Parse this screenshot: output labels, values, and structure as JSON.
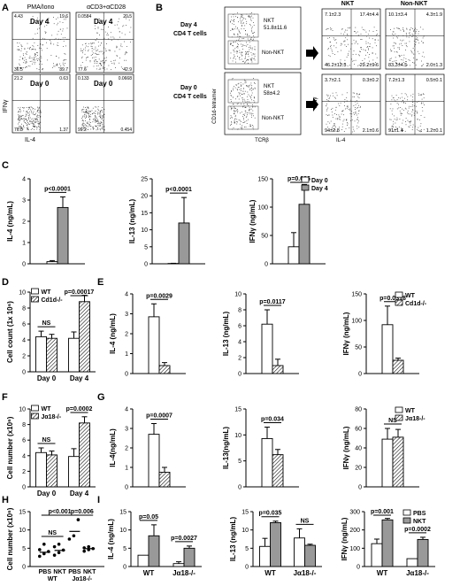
{
  "panelA": {
    "letter": "A",
    "col_titles": [
      "PMA/Iono",
      "αCD3+αCD28"
    ],
    "day4": "Day 4",
    "day0": "Day 0",
    "ylabel": "IFNγ",
    "xlabel": "IL-4",
    "quads": [
      [
        "4.43",
        "19.6",
        "36.5",
        "39.7"
      ],
      [
        "0.0584",
        "20.5",
        "77.6",
        "42.9"
      ],
      [
        "21.2",
        "0.63",
        "76.8",
        "1.37"
      ],
      [
        "0.133",
        "0.0668",
        "99.2",
        "0.454"
      ]
    ]
  },
  "panelB": {
    "letter": "B",
    "row_labels": [
      [
        "Day 4",
        "CD4 T cells"
      ],
      [
        "Day 0",
        "CD4 T cells"
      ]
    ],
    "gates": [
      [
        "NKT",
        "51.8±11.6",
        "Non-NKT"
      ],
      [
        "NKT",
        "58±4.2",
        "Non-NKT"
      ]
    ],
    "ylabel": "CD1d-tetramer",
    "xlabel": "TCRβ",
    "col_titles": [
      "NKT",
      "Non-NKT"
    ],
    "quads": [
      [
        "7.1±2.3",
        "17.4±4.4",
        "46.2±12.3",
        "29.2±9.6"
      ],
      [
        "10.1±3.4",
        "4.3±1.9",
        "83.3±4.5",
        "2.0±1.3"
      ],
      [
        "3.7±2.1",
        "0.3±0.2",
        "94±2.8",
        "2.1±0.6"
      ],
      [
        "7.2±1.3",
        "0.5±0.1",
        "91±1.4",
        "1.2±0.1"
      ]
    ],
    "ylabel2": "IFNγ",
    "xlabel2": "IL-4"
  },
  "chart_data": [
    {
      "panel": "C",
      "type": "bar",
      "ylabel": "IL-4 (ng/mL)",
      "ylim": [
        0,
        4
      ],
      "yticks": [
        0,
        1,
        2,
        3,
        4
      ],
      "series": [
        {
          "name": "Day 0",
          "values": [
            0.1
          ],
          "err": [
            0.05
          ]
        },
        {
          "name": "Day 4",
          "values": [
            2.65
          ],
          "err": [
            0.5
          ]
        }
      ],
      "annotations": [
        "p<0.0001"
      ]
    },
    {
      "panel": "C",
      "type": "bar",
      "ylabel": "IL-13 (ng/mL)",
      "ylim": [
        0,
        25
      ],
      "yticks": [
        0,
        5,
        10,
        15,
        20,
        25
      ],
      "series": [
        {
          "name": "Day 0",
          "values": [
            0.1
          ],
          "err": [
            0.05
          ]
        },
        {
          "name": "Day 4",
          "values": [
            12
          ],
          "err": [
            7.5
          ]
        }
      ],
      "annotations": [
        "p<0.0001"
      ]
    },
    {
      "panel": "C",
      "type": "bar",
      "ylabel": "IFNγ (ng/mL)",
      "ylim": [
        0,
        150
      ],
      "yticks": [
        0,
        50,
        100,
        150
      ],
      "series": [
        {
          "name": "Day 0",
          "values": [
            30
          ],
          "err": [
            25
          ]
        },
        {
          "name": "Day 4",
          "values": [
            105
          ],
          "err": [
            35
          ]
        }
      ],
      "legend": [
        "Day 0",
        "Day 4"
      ],
      "annotations": [
        "p=0.036"
      ]
    },
    {
      "panel": "D",
      "type": "bar",
      "ylabel": "Cell count (1x 10⁶)",
      "ylim": [
        0,
        10
      ],
      "yticks": [
        0,
        2,
        4,
        6,
        8,
        10
      ],
      "categories": [
        "Day 0",
        "Day 4"
      ],
      "series": [
        {
          "name": "WT",
          "values": [
            4.4,
            4.2
          ],
          "err": [
            0.7,
            0.8
          ]
        },
        {
          "name": "Cd1d-/-",
          "values": [
            4.2,
            8.8
          ],
          "err": [
            0.5,
            0.8
          ]
        }
      ],
      "legend": [
        "WT",
        "Cd1d-/-"
      ],
      "annotations": [
        "NS",
        "p=0.00017"
      ]
    },
    {
      "panel": "E",
      "type": "bar",
      "ylabel": "IL-4 (ng/mL)",
      "ylim": [
        0,
        4
      ],
      "yticks": [
        0,
        1,
        2,
        3,
        4
      ],
      "series": [
        {
          "name": "WT",
          "values": [
            2.85
          ],
          "err": [
            0.65
          ]
        },
        {
          "name": "Cd1d-/-",
          "values": [
            0.4
          ],
          "err": [
            0.15
          ]
        }
      ],
      "annotations": [
        "p=0.0029"
      ]
    },
    {
      "panel": "E",
      "type": "bar",
      "ylabel": "IL-13 (ng/mL)",
      "ylim": [
        0,
        10
      ],
      "yticks": [
        0,
        2,
        4,
        6,
        8,
        10
      ],
      "series": [
        {
          "name": "WT",
          "values": [
            6.2
          ],
          "err": [
            1.8
          ]
        },
        {
          "name": "Cd1d-/-",
          "values": [
            1
          ],
          "err": [
            0.8
          ]
        }
      ],
      "annotations": [
        "p=0.0117"
      ]
    },
    {
      "panel": "E",
      "type": "bar",
      "ylabel": "IFNγ (ng/mL)",
      "ylim": [
        0,
        150
      ],
      "yticks": [
        0,
        50,
        100,
        150
      ],
      "series": [
        {
          "name": "WT",
          "values": [
            92
          ],
          "err": [
            35
          ]
        },
        {
          "name": "Cd1d-/-",
          "values": [
            25
          ],
          "err": [
            4
          ]
        }
      ],
      "legend": [
        "WT",
        "Cd1d-/-"
      ],
      "annotations": [
        "p=0.0318"
      ]
    },
    {
      "panel": "F",
      "type": "bar",
      "ylabel": "Cell number (x10⁶)",
      "ylim": [
        0,
        10
      ],
      "yticks": [
        0,
        2,
        4,
        6,
        8,
        10
      ],
      "categories": [
        "Day 0",
        "Day 4"
      ],
      "series": [
        {
          "name": "WT",
          "values": [
            4.4,
            3.9
          ],
          "err": [
            0.6,
            1.0
          ]
        },
        {
          "name": "Jα18-/-",
          "values": [
            4.1,
            8.2
          ],
          "err": [
            0.5,
            0.8
          ]
        }
      ],
      "legend": [
        "WT",
        "Jα18-/-"
      ],
      "annotations": [
        "NS",
        "p=0.0002"
      ]
    },
    {
      "panel": "G",
      "type": "bar",
      "ylabel": "IL-4(ng/mL)",
      "ylim": [
        0,
        4
      ],
      "yticks": [
        0,
        1,
        2,
        3,
        4
      ],
      "series": [
        {
          "name": "WT",
          "values": [
            2.7
          ],
          "err": [
            0.55
          ]
        },
        {
          "name": "Jα18-/-",
          "values": [
            0.75
          ],
          "err": [
            0.25
          ]
        }
      ],
      "annotations": [
        "p=0.0007"
      ]
    },
    {
      "panel": "G",
      "type": "bar",
      "ylabel": "IL-13(ng/mL)",
      "ylim": [
        0,
        15
      ],
      "yticks": [
        0,
        5,
        10,
        15
      ],
      "series": [
        {
          "name": "WT",
          "values": [
            9.3
          ],
          "err": [
            2.2
          ]
        },
        {
          "name": "Jα18-/-",
          "values": [
            6.2
          ],
          "err": [
            1
          ]
        }
      ],
      "annotations": [
        "p=0.034"
      ]
    },
    {
      "panel": "G",
      "type": "bar",
      "ylabel": "IFNγ (ng/mL)",
      "ylim": [
        0,
        80
      ],
      "yticks": [
        0,
        20,
        40,
        60,
        80
      ],
      "series": [
        {
          "name": "WT",
          "values": [
            49
          ],
          "err": [
            11
          ]
        },
        {
          "name": "Jα18-/-",
          "values": [
            51
          ],
          "err": [
            8
          ]
        }
      ],
      "legend": [
        "WT",
        "Jα18-/-"
      ],
      "annotations": [
        "NS"
      ]
    },
    {
      "panel": "H",
      "type": "scatter",
      "ylabel": "Cell number (x10⁶)",
      "ylim": [
        0,
        15
      ],
      "yticks": [
        0,
        5,
        10,
        15
      ],
      "categories": [
        "PBS",
        "NKT",
        "PBS",
        "NKT"
      ],
      "groups": [
        "WT",
        "Jα18-/-"
      ],
      "points": [
        [
          2.8,
          3.5,
          4.1,
          4.6,
          6.1
        ],
        [
          3.1,
          3.8,
          4.5,
          5.4,
          6.1
        ],
        [
          7.5,
          8.4,
          12.8
        ],
        [
          4.2,
          4.6,
          4.9,
          5.1,
          5.4
        ]
      ],
      "means": [
        3.9,
        4.4,
        9.6,
        4.9
      ],
      "annotations": [
        "p<0.001",
        "NS",
        "p=0.006"
      ]
    },
    {
      "panel": "I",
      "type": "bar",
      "ylabel": "IL-4 (ng/mL)",
      "ylim": [
        0,
        15
      ],
      "yticks": [
        0,
        5,
        10,
        15
      ],
      "categories": [
        "WT",
        "Jα18-/-"
      ],
      "series": [
        {
          "name": "PBS",
          "values": [
            3.1,
            0.8
          ],
          "err": [
            0,
            0.5
          ]
        },
        {
          "name": "NKT",
          "values": [
            8.4,
            5
          ],
          "err": [
            3,
            0.6
          ]
        }
      ],
      "annotations": [
        "p=0.05",
        "p=0.0027"
      ]
    },
    {
      "panel": "I",
      "type": "bar",
      "ylabel": "IL-13 (ng/mL)",
      "ylim": [
        0,
        15
      ],
      "yticks": [
        0,
        5,
        10,
        15
      ],
      "categories": [
        "WT",
        "Jα18-/-"
      ],
      "series": [
        {
          "name": "PBS",
          "values": [
            5.5,
            7.8
          ],
          "err": [
            2.2,
            2.5
          ]
        },
        {
          "name": "NKT",
          "values": [
            12,
            5.8
          ],
          "err": [
            0.4,
            0.3
          ]
        }
      ],
      "annotations": [
        "p=0.035",
        "NS"
      ]
    },
    {
      "panel": "I",
      "type": "bar",
      "ylabel": "IFNγ (ng/mL)",
      "ylim": [
        0,
        300
      ],
      "yticks": [
        0,
        100,
        200,
        300
      ],
      "categories": [
        "WT",
        "Jα18-/-"
      ],
      "series": [
        {
          "name": "PBS",
          "values": [
            125,
            43
          ],
          "err": [
            25,
            0
          ]
        },
        {
          "name": "NKT",
          "values": [
            255,
            148
          ],
          "err": [
            8,
            12
          ]
        }
      ],
      "legend": [
        "PBS",
        "NKT"
      ],
      "annotations": [
        "p=0.001",
        "p=0.0002"
      ]
    }
  ]
}
